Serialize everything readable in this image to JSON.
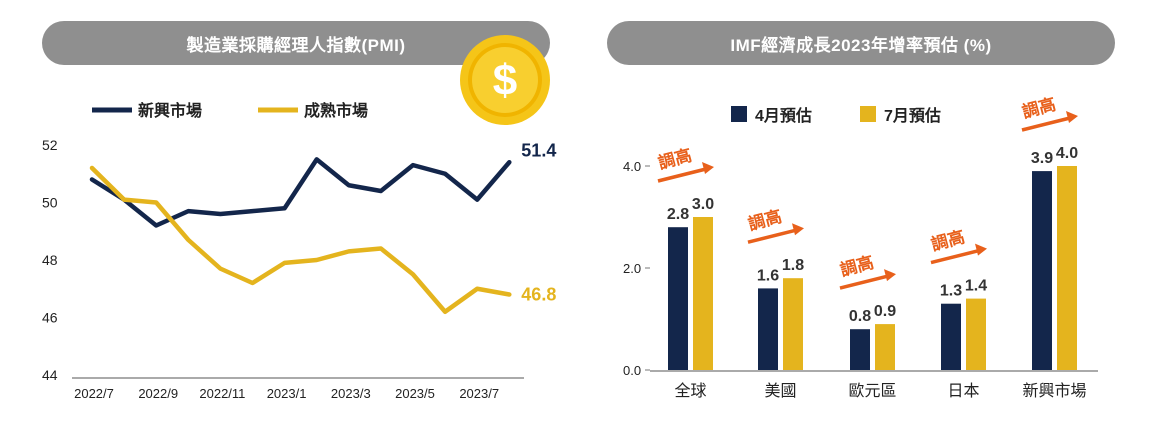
{
  "colors": {
    "emerging": "#13264b",
    "mature": "#e4b41e",
    "pill": "#8f8f8f",
    "arrow": "#e8601b",
    "coin": "#f5c518"
  },
  "icons": {
    "coin": "dollar-coin-icon",
    "arrow": "arrow-up-right-icon"
  },
  "coin_symbol": "$",
  "chart_data": [
    {
      "type": "line",
      "title": "製造業採購經理人指數(PMI)",
      "x": [
        "2022/7",
        "2022/8",
        "2022/9",
        "2022/10",
        "2022/11",
        "2022/12",
        "2023/1",
        "2023/2",
        "2023/3",
        "2023/4",
        "2023/5",
        "2023/6",
        "2023/7",
        "2023/8"
      ],
      "x_tick_labels": [
        "2022/7",
        "2022/9",
        "2022/11",
        "2023/1",
        "2023/3",
        "2023/5",
        "2023/7"
      ],
      "ylim": [
        44,
        52
      ],
      "y_ticks": [
        "44",
        "46",
        "48",
        "50",
        "52"
      ],
      "legend": "top-left",
      "grid": false,
      "series": [
        {
          "name": "新興市場",
          "values": [
            50.8,
            50.1,
            49.2,
            49.7,
            49.6,
            49.7,
            49.8,
            51.5,
            50.6,
            50.4,
            51.3,
            51.0,
            50.1,
            51.4
          ],
          "end_label": "51.4"
        },
        {
          "name": "成熟市場",
          "values": [
            51.2,
            50.1,
            50.0,
            48.7,
            47.7,
            47.2,
            47.9,
            48.0,
            48.3,
            48.4,
            47.5,
            46.2,
            47.0,
            46.8
          ],
          "end_label": "46.8"
        }
      ]
    },
    {
      "type": "bar",
      "title": "IMF經濟成長2023年增率預估 (%)",
      "categories": [
        "全球",
        "美國",
        "歐元區",
        "日本",
        "新興市場"
      ],
      "ylim": [
        0,
        4.4
      ],
      "y_ticks": [
        "0.0",
        "2.0",
        "4.0"
      ],
      "legend": "top",
      "grid": false,
      "series": [
        {
          "name": "4月預估",
          "values": [
            2.8,
            1.6,
            0.8,
            1.3,
            3.9
          ],
          "labels": [
            "2.8",
            "1.6",
            "0.8",
            "1.3",
            "3.9"
          ]
        },
        {
          "name": "7月預估",
          "values": [
            3.0,
            1.8,
            0.9,
            1.4,
            4.0
          ],
          "labels": [
            "3.0",
            "1.8",
            "0.9",
            "1.4",
            "4.0"
          ]
        }
      ],
      "annotation": "調高"
    }
  ]
}
